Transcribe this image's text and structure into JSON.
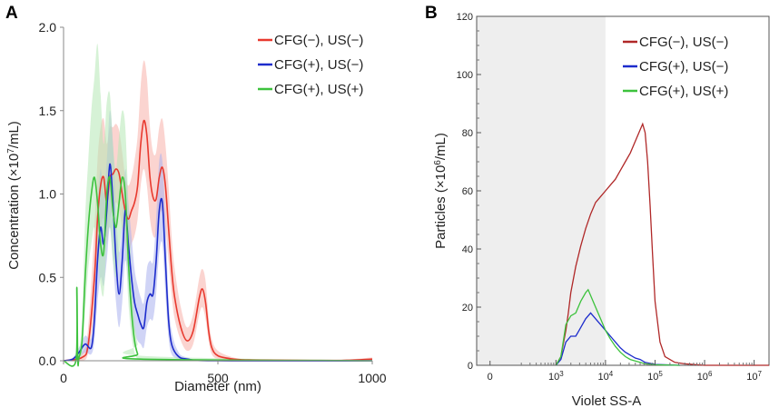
{
  "chart_data": [
    {
      "panel_label": "A",
      "type": "line",
      "xlabel": "Diameter (nm)",
      "ylabel_prefix": "Concentration (×10",
      "ylabel_exp": "7",
      "ylabel_suffix": "/mL)",
      "xlim": [
        0,
        1000
      ],
      "ylim": [
        0,
        2.0
      ],
      "xticks": [
        0,
        500,
        1000
      ],
      "xtick_labels": [
        "0",
        "500",
        "1000"
      ],
      "yticks": [
        0,
        0.5,
        1.0,
        1.5,
        2.0
      ],
      "ytick_labels": [
        "0.0",
        "0.5",
        "1.0",
        "1.5",
        "2.0"
      ],
      "legend_position": "top-right",
      "series": [
        {
          "name": "CFG(−), US(−)",
          "color": "#e8392e",
          "band_color": "#f7b0aa",
          "x": [
            0,
            60,
            80,
            100,
            110,
            120,
            130,
            140,
            150,
            160,
            170,
            180,
            190,
            200,
            210,
            220,
            230,
            240,
            250,
            260,
            270,
            280,
            290,
            300,
            310,
            320,
            330,
            340,
            350,
            360,
            380,
            400,
            420,
            440,
            450,
            460,
            470,
            480,
            500,
            550,
            600,
            700,
            800,
            900,
            1000
          ],
          "y": [
            0,
            0.02,
            0.1,
            0.5,
            0.85,
            1.05,
            1.1,
            0.95,
            1.1,
            1.12,
            1.15,
            1.12,
            1.0,
            0.9,
            0.85,
            0.9,
            0.95,
            1.05,
            1.3,
            1.44,
            1.35,
            1.1,
            0.98,
            0.97,
            1.1,
            1.16,
            1.05,
            0.8,
            0.55,
            0.38,
            0.2,
            0.12,
            0.18,
            0.38,
            0.43,
            0.35,
            0.18,
            0.08,
            0.03,
            0.01,
            0.005,
            0.003,
            0.002,
            0.002,
            0.01
          ],
          "lower": [
            0,
            0.0,
            0.05,
            0.3,
            0.6,
            0.8,
            0.85,
            0.7,
            0.85,
            0.9,
            0.95,
            0.9,
            0.8,
            0.7,
            0.65,
            0.7,
            0.75,
            0.85,
            1.05,
            1.15,
            1.05,
            0.85,
            0.75,
            0.75,
            0.85,
            0.9,
            0.8,
            0.6,
            0.4,
            0.25,
            0.12,
            0.06,
            0.1,
            0.28,
            0.32,
            0.25,
            0.12,
            0.04,
            0.01,
            0.0,
            0.0,
            0.0,
            0.0,
            0.0,
            0.0
          ],
          "upper": [
            0,
            0.05,
            0.2,
            0.8,
            1.2,
            1.4,
            1.45,
            1.3,
            1.4,
            1.4,
            1.42,
            1.38,
            1.25,
            1.1,
            1.05,
            1.1,
            1.2,
            1.35,
            1.65,
            1.8,
            1.7,
            1.4,
            1.25,
            1.25,
            1.4,
            1.45,
            1.3,
            1.05,
            0.75,
            0.55,
            0.32,
            0.2,
            0.28,
            0.5,
            0.55,
            0.48,
            0.26,
            0.13,
            0.06,
            0.02,
            0.01,
            0.008,
            0.006,
            0.006,
            0.02
          ]
        },
        {
          "name": "CFG(+), US(−)",
          "color": "#1d2ccc",
          "band_color": "#aab0ee",
          "x": [
            0,
            30,
            50,
            70,
            90,
            100,
            110,
            120,
            130,
            140,
            150,
            160,
            170,
            180,
            190,
            200,
            210,
            220,
            230,
            240,
            250,
            260,
            270,
            280,
            290,
            300,
            310,
            320,
            330,
            340,
            350,
            370,
            400,
            500,
            1000
          ],
          "y": [
            0,
            0.01,
            0.05,
            0.1,
            0.08,
            0.25,
            0.6,
            0.8,
            0.7,
            0.9,
            1.18,
            0.95,
            0.6,
            0.4,
            0.6,
            0.9,
            0.7,
            0.5,
            0.35,
            0.28,
            0.22,
            0.2,
            0.35,
            0.4,
            0.4,
            0.6,
            0.9,
            0.95,
            0.6,
            0.25,
            0.1,
            0.03,
            0.01,
            0.0,
            0.0
          ],
          "lower": [
            0,
            0.0,
            0.02,
            0.05,
            0.04,
            0.12,
            0.35,
            0.5,
            0.45,
            0.6,
            0.8,
            0.6,
            0.35,
            0.2,
            0.35,
            0.6,
            0.45,
            0.28,
            0.18,
            0.12,
            0.1,
            0.08,
            0.2,
            0.25,
            0.25,
            0.4,
            0.65,
            0.7,
            0.4,
            0.14,
            0.04,
            0.01,
            0.0,
            0.0,
            0.0
          ],
          "upper": [
            0,
            0.02,
            0.08,
            0.15,
            0.14,
            0.4,
            0.9,
            1.15,
            1.0,
            1.2,
            1.5,
            1.3,
            0.9,
            0.65,
            0.85,
            1.15,
            0.95,
            0.75,
            0.55,
            0.45,
            0.38,
            0.35,
            0.55,
            0.6,
            0.6,
            0.85,
            1.2,
            1.2,
            0.85,
            0.38,
            0.18,
            0.06,
            0.02,
            0.0,
            0.0
          ]
        },
        {
          "name": "CFG(+), US(+)",
          "color": "#3dc23d",
          "band_color": "#b4e8b4",
          "x": [
            0,
            40,
            43,
            46,
            50,
            60,
            70,
            80,
            90,
            100,
            110,
            120,
            130,
            140,
            150,
            160,
            170,
            180,
            190,
            200,
            210,
            220,
            230,
            240,
            250,
            1000
          ],
          "y": [
            0,
            0,
            0.44,
            0.0,
            0.02,
            0.12,
            0.5,
            0.8,
            1.0,
            1.1,
            0.95,
            0.7,
            0.65,
            1.0,
            1.1,
            0.9,
            0.8,
            0.95,
            1.1,
            1.0,
            0.6,
            0.3,
            0.12,
            0.04,
            0.01,
            0.0
          ],
          "lower": [
            0,
            0,
            0.4,
            0.0,
            0.0,
            0.05,
            0.3,
            0.55,
            0.7,
            0.8,
            0.65,
            0.45,
            0.4,
            0.7,
            0.8,
            0.6,
            0.5,
            0.65,
            0.8,
            0.7,
            0.35,
            0.15,
            0.05,
            0.01,
            0.0,
            0.0
          ],
          "upper": [
            0,
            0,
            0.48,
            0.0,
            0.05,
            0.25,
            0.85,
            1.2,
            1.5,
            1.7,
            1.9,
            1.6,
            1.3,
            1.55,
            1.6,
            1.3,
            1.15,
            1.35,
            1.5,
            1.4,
            0.95,
            0.55,
            0.25,
            0.1,
            0.03,
            0.0
          ]
        }
      ]
    },
    {
      "panel_label": "B",
      "type": "line",
      "x_scale": "log",
      "xlabel": "Violet SS-A",
      "ylabel_prefix": "Particles (×10",
      "ylabel_exp": "6",
      "ylabel_suffix": "/mL)",
      "xlim_log10": [
        1.4,
        7.3
      ],
      "ylim": [
        0,
        120
      ],
      "yticks": [
        0,
        20,
        40,
        60,
        80,
        100,
        120
      ],
      "ytick_labels": [
        "0",
        "20",
        "40",
        "60",
        "80",
        "100",
        "120"
      ],
      "xticks_log10": [
        3,
        4,
        5,
        6,
        7
      ],
      "xtick_labels": [
        "10",
        "10",
        "10",
        "10",
        "10"
      ],
      "xtick_exps": [
        "3",
        "4",
        "5",
        "6",
        "7"
      ],
      "extra_tick_label": "0",
      "shaded_region_log10": [
        1.4,
        4.0
      ],
      "legend_position": "top-right",
      "series": [
        {
          "name": "CFG(−), US(−)",
          "color": "#b02828",
          "x_log10": [
            3.0,
            3.1,
            3.2,
            3.25,
            3.3,
            3.4,
            3.5,
            3.6,
            3.7,
            3.8,
            3.9,
            4.0,
            4.1,
            4.2,
            4.3,
            4.4,
            4.5,
            4.6,
            4.7,
            4.75,
            4.8,
            4.85,
            4.9,
            4.95,
            5.0,
            5.1,
            5.2,
            5.4,
            5.6,
            6.0,
            7.3
          ],
          "y": [
            0,
            3,
            12,
            18,
            25,
            34,
            41,
            47,
            52,
            56,
            58,
            60,
            62,
            64,
            67,
            70,
            73,
            77,
            81,
            83,
            80,
            70,
            55,
            38,
            22,
            8,
            3,
            1,
            0.5,
            0,
            0
          ]
        },
        {
          "name": "CFG(+), US(−)",
          "color": "#1d2ccc",
          "x_log10": [
            3.0,
            3.1,
            3.2,
            3.3,
            3.4,
            3.5,
            3.6,
            3.7,
            3.8,
            3.9,
            4.0,
            4.1,
            4.2,
            4.3,
            4.4,
            4.5,
            4.6,
            4.7,
            4.8,
            5.0,
            5.5
          ],
          "y": [
            0,
            2,
            8,
            10,
            10,
            13,
            16,
            18,
            16,
            14,
            12,
            10,
            8,
            6,
            4.5,
            3.5,
            2.5,
            2,
            1,
            0.3,
            0
          ]
        },
        {
          "name": "CFG(+), US(+)",
          "color": "#3dc23d",
          "x_log10": [
            3.0,
            3.1,
            3.2,
            3.3,
            3.4,
            3.5,
            3.6,
            3.65,
            3.7,
            3.8,
            3.9,
            4.0,
            4.1,
            4.2,
            4.3,
            4.4,
            4.5,
            4.6,
            4.7,
            4.8,
            5.0,
            5.5
          ],
          "y": [
            0,
            3,
            14,
            17,
            18,
            22,
            25,
            26,
            24,
            20,
            16,
            12,
            9,
            6.5,
            4.5,
            3,
            2,
            1.5,
            1,
            0.5,
            0.2,
            0
          ]
        }
      ]
    }
  ]
}
